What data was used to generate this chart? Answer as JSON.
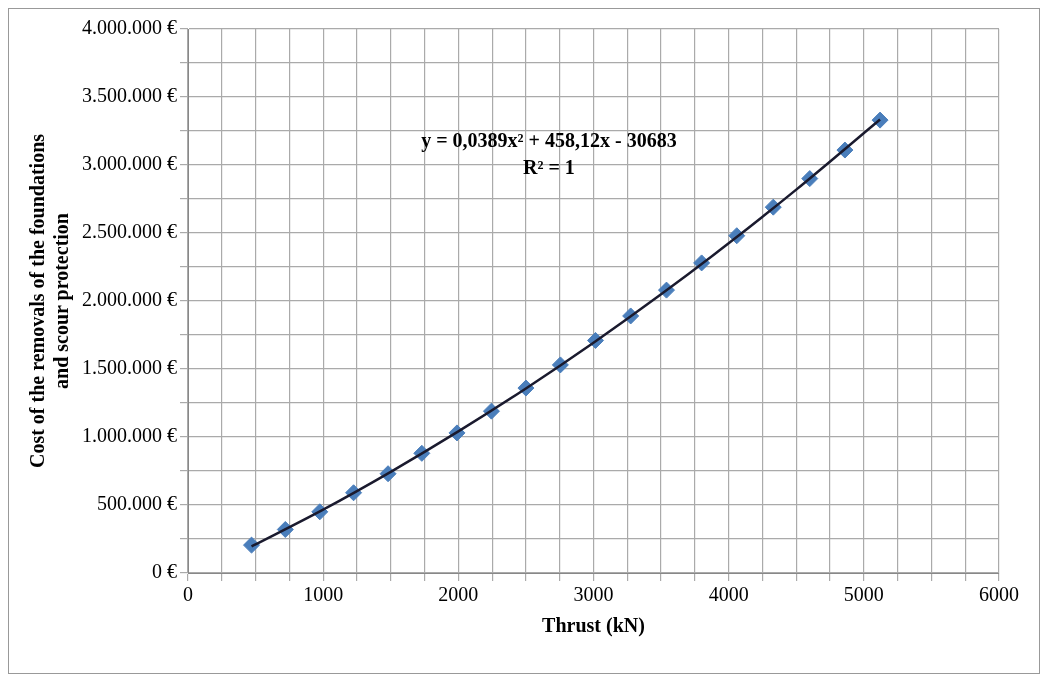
{
  "chart_data": {
    "type": "scatter",
    "xlabel": "Thrust (kN)",
    "ylabel": "Cost of the removals of the foundations and scour protection",
    "annotations": [
      "y = 0,0389x² + 458,12x - 30683",
      "R² = 1"
    ],
    "series": [
      {
        "color": "#4a7ebb",
        "marker": "diamond",
        "x": [
          470,
          720,
          975,
          1225,
          1480,
          1730,
          1990,
          2245,
          2500,
          2755,
          3015,
          3275,
          3540,
          3800,
          4060,
          4330,
          4600,
          4860,
          5120
        ],
        "values": [
          205000,
          320000,
          450000,
          590000,
          730000,
          880000,
          1030000,
          1190000,
          1360000,
          1530000,
          1710000,
          1890000,
          2080000,
          2280000,
          2480000,
          2690000,
          2900000,
          3110000,
          3330000
        ]
      },
      {
        "type": "line",
        "color": "#1a1a2e",
        "marker": "none",
        "x": [
          470,
          1000,
          1500,
          2000,
          2500,
          3000,
          3500,
          4000,
          4500,
          5120
        ],
        "values": [
          195000,
          466000,
          744000,
          1041000,
          1357000,
          1693000,
          2049000,
          2424000,
          2819000,
          3335000
        ]
      }
    ],
    "xlim": [
      0,
      6000
    ],
    "xticks": [
      0,
      {
        "value": 250,
        "label": null
      },
      1000,
      {
        "value": 500,
        "label": null
      },
      {
        "value": 750,
        "label": null
      },
      {
        "value": 1250,
        "label": null
      },
      {
        "value": 1500,
        "label": null
      },
      {
        "value": 1750,
        "label": null
      },
      2000,
      {
        "value": 2250,
        "label": null
      },
      {
        "value": 2500,
        "label": null
      },
      {
        "value": 2750,
        "label": null
      },
      3000,
      {
        "value": 3250,
        "label": null
      },
      {
        "value": 3500,
        "label": null
      },
      {
        "value": 3750,
        "label": null
      },
      4000,
      {
        "value": 4250,
        "label": null
      },
      {
        "value": 4500,
        "label": null
      },
      {
        "value": 4750,
        "label": null
      },
      5000,
      {
        "value": 5250,
        "label": null
      },
      {
        "value": 5500,
        "label": null
      },
      {
        "value": 5750,
        "label": null
      },
      6000
    ],
    "ylim": [
      0,
      4000000
    ],
    "yticks": [
      {
        "value": 0,
        "label": "0 €"
      },
      {
        "value": 250000,
        "label": null
      },
      {
        "value": 500000,
        "label": "500.000 €"
      },
      {
        "value": 750000,
        "label": null
      },
      {
        "value": 1000000,
        "label": "1.000.000 €"
      },
      {
        "value": 1250000,
        "label": null
      },
      {
        "value": 1500000,
        "label": "1.500.000 €"
      },
      {
        "value": 1750000,
        "label": null
      },
      {
        "value": 2000000,
        "label": "2.000.000 €"
      },
      {
        "value": 2250000,
        "label": null
      },
      {
        "value": 2500000,
        "label": "2.500.000 €"
      },
      {
        "value": 2750000,
        "label": null
      },
      {
        "value": 3000000,
        "label": "3.000.000 €"
      },
      {
        "value": 3250000,
        "label": null
      },
      {
        "value": 3500000,
        "label": "3.500.000 €"
      },
      {
        "value": 3750000,
        "label": null
      },
      {
        "value": 4000000,
        "label": "4.000.000 €"
      }
    ],
    "grid": true,
    "legend": false
  }
}
